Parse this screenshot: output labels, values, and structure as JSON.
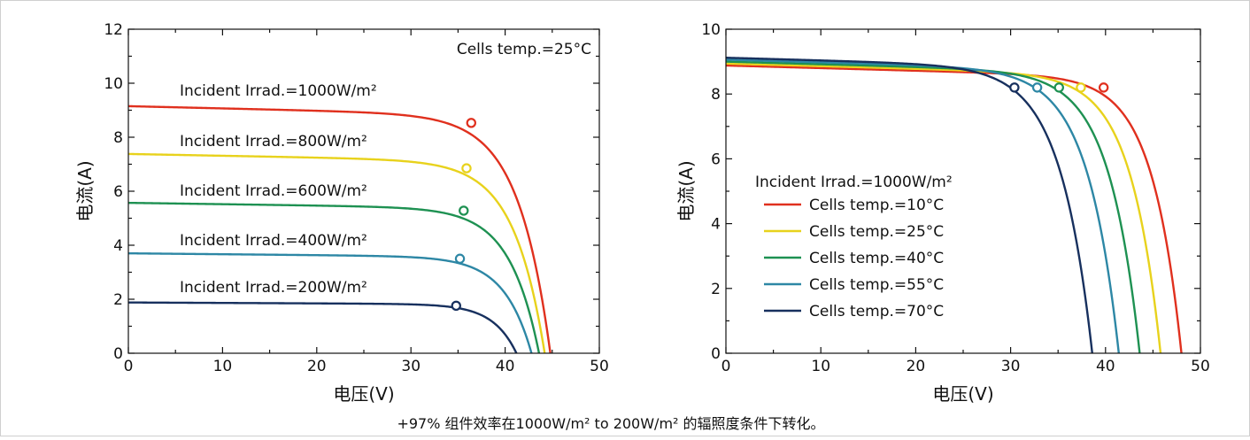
{
  "caption": "+97% 组件效率在1000W/m² to 200W/m²  的辐照度条件下转化。",
  "chart_data": [
    {
      "type": "line",
      "xlabel": "电压(V)",
      "ylabel": "电流(A)",
      "xlim": [
        0,
        50
      ],
      "ylim": [
        0,
        12
      ],
      "xticks": [
        0,
        10,
        20,
        30,
        40,
        50
      ],
      "yticks": [
        0,
        2,
        4,
        6,
        8,
        10,
        12
      ],
      "xtick_labels": [
        "0",
        "10",
        "20",
        "30",
        "40",
        "50"
      ],
      "ytick_labels": [
        "0",
        "2",
        "4",
        "6",
        "8",
        "10",
        "12"
      ],
      "grid": false,
      "note": "Cells temp.=25°C",
      "series": [
        {
          "name": "Incident Irrad.=1000W/m²",
          "color": "#e0301e",
          "isc": 9.15,
          "voc": 44.8,
          "knee": 31.5,
          "mpp": [
            36.4,
            8.53
          ]
        },
        {
          "name": "Incident Irrad.=800W/m²",
          "color": "#e8d21c",
          "isc": 7.38,
          "voc": 44.2,
          "knee": 31.5,
          "mpp": [
            35.9,
            6.85
          ]
        },
        {
          "name": "Incident Irrad.=600W/m²",
          "color": "#1e9152",
          "isc": 5.57,
          "voc": 43.6,
          "knee": 31.5,
          "mpp": [
            35.6,
            5.28
          ]
        },
        {
          "name": "Incident Irrad.=400W/m²",
          "color": "#2d87a5",
          "isc": 3.7,
          "voc": 42.8,
          "knee": 31.5,
          "mpp": [
            35.2,
            3.5
          ]
        },
        {
          "name": "Incident Irrad.=200W/m²",
          "color": "#17305e",
          "isc": 1.88,
          "voc": 41.2,
          "knee": 31.5,
          "mpp": [
            34.8,
            1.76
          ]
        }
      ]
    },
    {
      "type": "line",
      "xlabel": "电压(V)",
      "ylabel": "电流(A)",
      "xlim": [
        0,
        50
      ],
      "ylim": [
        0,
        10
      ],
      "xticks": [
        0,
        10,
        20,
        30,
        40,
        50
      ],
      "yticks": [
        0,
        2,
        4,
        6,
        8,
        10
      ],
      "xtick_labels": [
        "0",
        "10",
        "20",
        "30",
        "40",
        "50"
      ],
      "ytick_labels": [
        "0",
        "2",
        "4",
        "6",
        "8",
        "10"
      ],
      "grid": false,
      "legend_title": "Incident Irrad.=1000W/m²",
      "legend_position": "center-left",
      "series": [
        {
          "name": "Cells temp.=10°C",
          "color": "#e0301e",
          "isc": 8.88,
          "voc": 48.0,
          "knee": 36.0,
          "mpp": [
            39.8,
            8.2
          ]
        },
        {
          "name": "Cells temp.=25°C",
          "color": "#e8d21c",
          "isc": 8.94,
          "voc": 45.8,
          "knee": 33.5,
          "mpp": [
            37.4,
            8.2
          ]
        },
        {
          "name": "Cells temp.=40°C",
          "color": "#1e9152",
          "isc": 9.0,
          "voc": 43.6,
          "knee": 31.0,
          "mpp": [
            35.1,
            8.2
          ]
        },
        {
          "name": "Cells temp.=55°C",
          "color": "#2d87a5",
          "isc": 9.06,
          "voc": 41.4,
          "knee": 28.5,
          "mpp": [
            32.8,
            8.2
          ]
        },
        {
          "name": "Cells temp.=70°C",
          "color": "#17305e",
          "isc": 9.12,
          "voc": 38.6,
          "knee": 25.5,
          "mpp": [
            30.4,
            8.2
          ]
        }
      ]
    }
  ]
}
